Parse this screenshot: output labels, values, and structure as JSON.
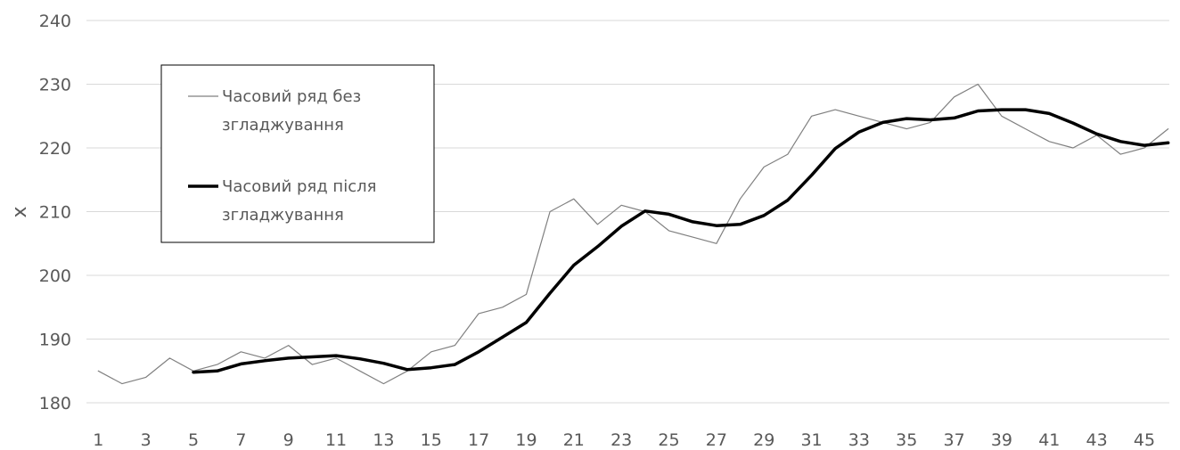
{
  "chart_data": {
    "type": "line",
    "ylabel": "x",
    "xlabel": "",
    "ylim": [
      180,
      240
    ],
    "yticks": [
      180,
      190,
      200,
      210,
      220,
      230,
      240
    ],
    "xtick_labels": [
      "1",
      "3",
      "5",
      "7",
      "9",
      "11",
      "13",
      "15",
      "17",
      "19",
      "21",
      "23",
      "25",
      "27",
      "29",
      "31",
      "33",
      "35",
      "37",
      "39",
      "41",
      "43",
      "45"
    ],
    "grid": true,
    "legend_position": "top-left",
    "series": [
      {
        "name": "Часовий ряд без згладжування",
        "color": "#808080",
        "x": [
          1,
          2,
          3,
          4,
          5,
          6,
          7,
          8,
          9,
          10,
          11,
          12,
          13,
          14,
          15,
          16,
          17,
          18,
          19,
          20,
          21,
          22,
          23,
          24,
          25,
          26,
          27,
          28,
          29,
          30,
          31,
          32,
          33,
          34,
          35,
          36,
          37,
          38,
          39,
          40,
          41,
          42,
          43,
          44,
          45,
          46
        ],
        "values": [
          185,
          183,
          184,
          187,
          185,
          186,
          188,
          187,
          189,
          186,
          187,
          185,
          183,
          185,
          188,
          189,
          194,
          195,
          197,
          210,
          212,
          208,
          211,
          210,
          207,
          206,
          205,
          212,
          217,
          219,
          225,
          226,
          225,
          224,
          223,
          224,
          228,
          230,
          225,
          223,
          221,
          220,
          222,
          219,
          220,
          223
        ]
      },
      {
        "name": "Часовий ряд після згладжування",
        "color": "#000000",
        "x": [
          5,
          6,
          7,
          8,
          9,
          10,
          11,
          12,
          13,
          14,
          15,
          16,
          17,
          18,
          19,
          20,
          21,
          22,
          23,
          24,
          25,
          26,
          27,
          28,
          29,
          30,
          31,
          32,
          33,
          34,
          35,
          36,
          37,
          38,
          39,
          40,
          41,
          42,
          43,
          44,
          45,
          46
        ],
        "values": [
          184.8,
          185.0,
          186.1,
          186.6,
          187.0,
          187.2,
          187.4,
          186.9,
          186.2,
          185.2,
          185.5,
          186.0,
          188.0,
          190.3,
          192.6,
          197.2,
          201.6,
          204.5,
          207.7,
          210.1,
          209.6,
          208.4,
          207.8,
          208.0,
          209.4,
          211.8,
          215.7,
          219.9,
          222.5,
          224.0,
          224.6,
          224.4,
          224.7,
          225.8,
          226.0,
          226.0,
          225.4,
          223.9,
          222.2,
          221.0,
          220.4,
          220.8
        ]
      }
    ]
  }
}
